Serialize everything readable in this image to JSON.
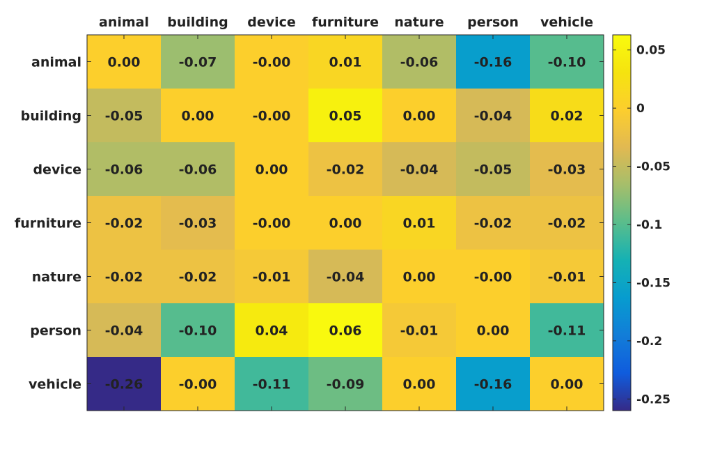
{
  "chart_data": {
    "type": "heatmap",
    "row_labels": [
      "animal",
      "building",
      "device",
      "furniture",
      "nature",
      "person",
      "vehicle"
    ],
    "col_labels": [
      "animal",
      "building",
      "device",
      "furniture",
      "nature",
      "person",
      "vehicle"
    ],
    "values": [
      [
        0.0,
        -0.07,
        -0.0,
        0.01,
        -0.06,
        -0.16,
        -0.1
      ],
      [
        -0.05,
        0.0,
        -0.0,
        0.05,
        0.0,
        -0.04,
        0.02
      ],
      [
        -0.06,
        -0.06,
        0.0,
        -0.02,
        -0.04,
        -0.05,
        -0.03
      ],
      [
        -0.02,
        -0.03,
        -0.0,
        0.0,
        0.01,
        -0.02,
        -0.02
      ],
      [
        -0.02,
        -0.02,
        -0.01,
        -0.04,
        0.0,
        -0.0,
        -0.01
      ],
      [
        -0.04,
        -0.1,
        0.04,
        0.06,
        -0.01,
        0.0,
        -0.11
      ],
      [
        -0.26,
        -0.0,
        -0.11,
        -0.09,
        0.0,
        -0.16,
        0.0
      ]
    ],
    "cell_labels": [
      [
        "0.00",
        "-0.07",
        "-0.00",
        "0.01",
        "-0.06",
        "-0.16",
        "-0.10"
      ],
      [
        "-0.05",
        "0.00",
        "-0.00",
        "0.05",
        "0.00",
        "-0.04",
        "0.02"
      ],
      [
        "-0.06",
        "-0.06",
        "0.00",
        "-0.02",
        "-0.04",
        "-0.05",
        "-0.03"
      ],
      [
        "-0.02",
        "-0.03",
        "-0.00",
        "0.00",
        "0.01",
        "-0.02",
        "-0.02"
      ],
      [
        "-0.02",
        "-0.02",
        "-0.01",
        "-0.04",
        "0.00",
        "-0.00",
        "-0.01"
      ],
      [
        "-0.04",
        "-0.10",
        "0.04",
        "0.06",
        "-0.01",
        "0.00",
        "-0.11"
      ],
      [
        "-0.26",
        "-0.00",
        "-0.11",
        "-0.09",
        "0.00",
        "-0.16",
        "0.00"
      ]
    ],
    "color_range": [
      -0.26,
      0.063
    ],
    "colorbar": {
      "ticks": [
        0.05,
        0,
        -0.05,
        -0.1,
        -0.15,
        -0.2,
        -0.25
      ],
      "tick_labels": [
        "0.05",
        "0",
        "-0.05",
        "-0.1",
        "-0.15",
        "-0.2",
        "-0.25"
      ]
    },
    "colormap": "parula",
    "x_axis_position": "top",
    "grid": false
  }
}
